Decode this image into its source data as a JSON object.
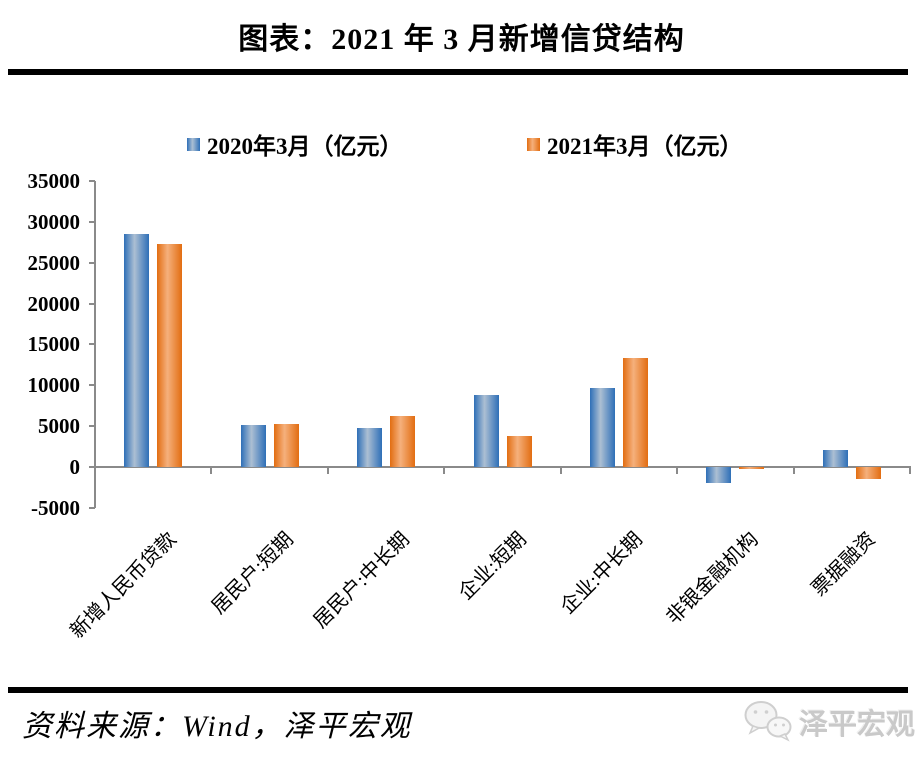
{
  "page": {
    "title": "图表：2021 年 3 月新增信贷结构"
  },
  "chart_data": {
    "type": "bar",
    "title": "图表：2021 年 3 月新增信贷结构",
    "unit": "亿元",
    "categories": [
      "新增人民币贷款",
      "居民户:短期",
      "居民户:中长期",
      "企业:短期",
      "企业:中长期",
      "非银金融机构",
      "票据融资"
    ],
    "series": [
      {
        "name": "2020年3月（亿元）",
        "color": "#2E6FB7",
        "color_light": "#ACBFD3",
        "values": [
          28500,
          5144,
          4738,
          8752,
          9643,
          -1948,
          2049
        ]
      },
      {
        "name": "2021年3月（亿元）",
        "color": "#E26D11",
        "color_light": "#F5B07C",
        "values": [
          27300,
          5242,
          6239,
          3748,
          13300,
          -270,
          -1525
        ]
      }
    ],
    "ylim": [
      -5000,
      35000
    ],
    "ytick_step": 5000,
    "yticks": [
      35000,
      30000,
      25000,
      20000,
      15000,
      10000,
      5000,
      0,
      -5000
    ],
    "axis_color": "#8a8a8a",
    "grid": false,
    "legend_position": "top"
  },
  "footer": {
    "source": "资料来源：Wind，泽平宏观",
    "logo_text": "泽平宏观"
  }
}
